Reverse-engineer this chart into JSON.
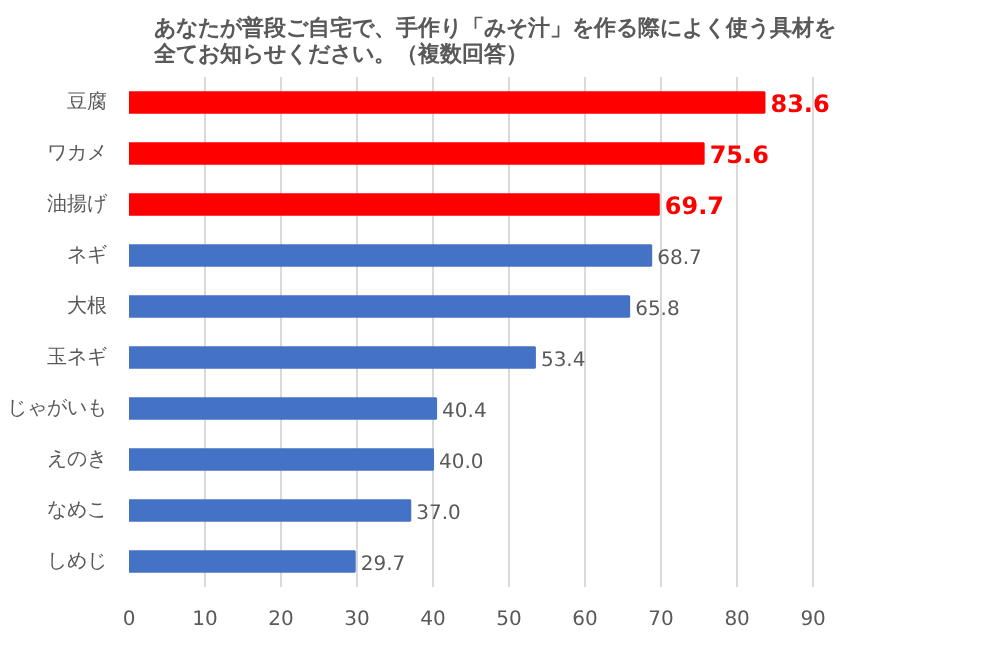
{
  "chart_data": {
    "type": "bar",
    "orientation": "horizontal",
    "title": "あなたが普段ご自宅で、手作り「みそ汁」を作る際によく使う具材を全てお知らせください。（複数回答）",
    "categories": [
      "豆腐",
      "ワカメ",
      "油揚げ",
      "ネギ",
      "大根",
      "玉ネギ",
      "じゃがいも",
      "えのき",
      "なめこ",
      "しめじ"
    ],
    "values": [
      83.6,
      75.6,
      69.7,
      68.7,
      65.8,
      53.4,
      40.4,
      40.0,
      37.0,
      29.7
    ],
    "colors": [
      "#ff0000",
      "#ff0000",
      "#ff0000",
      "#4472c4",
      "#4472c4",
      "#4472c4",
      "#4472c4",
      "#4472c4",
      "#4472c4",
      "#4472c4"
    ],
    "value_labels": [
      "83.6",
      "75.6",
      "69.7",
      "68.7",
      "65.8",
      "53.4",
      "40.4",
      "40.0",
      "37.0",
      "29.7"
    ],
    "xlim": [
      0,
      90
    ],
    "xticks": [
      0,
      10,
      20,
      30,
      40,
      50,
      60,
      70,
      80,
      90
    ],
    "grid": "x"
  }
}
